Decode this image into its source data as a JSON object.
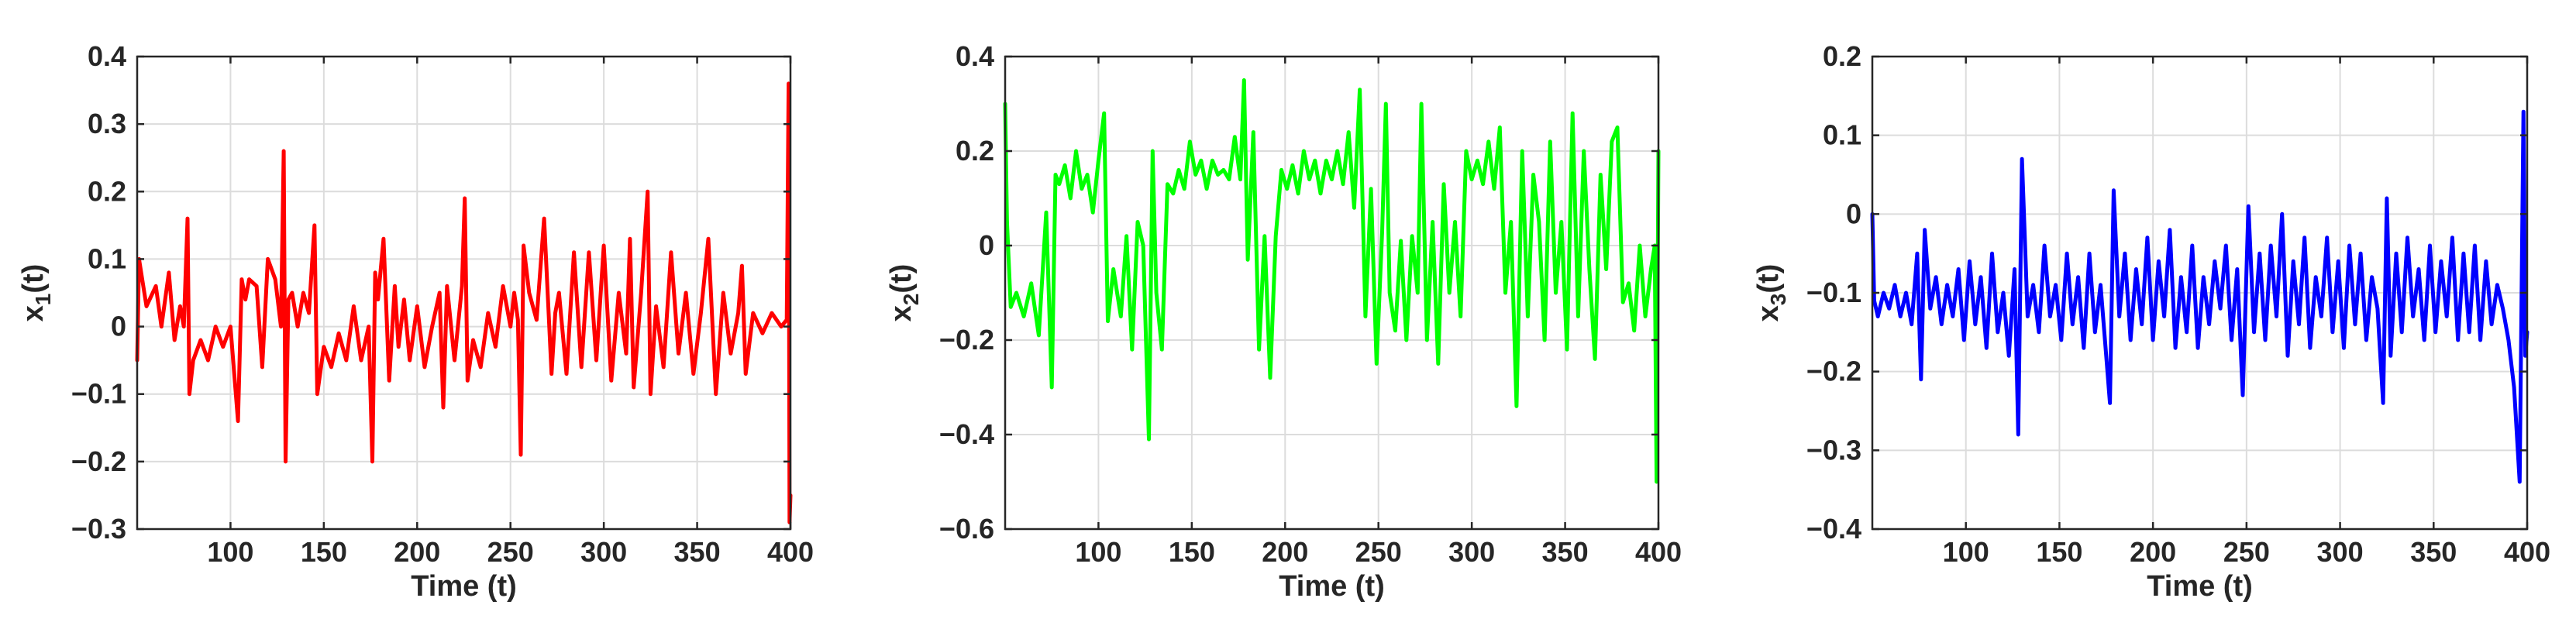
{
  "chart_data": [
    {
      "type": "line",
      "xlabel": "Time (t)",
      "ylabel": "x",
      "ylabel_sub": "1",
      "ylabel_suffix": "(t)",
      "xlim": [
        50,
        400
      ],
      "ylim": [
        -0.3,
        0.4
      ],
      "xticks": [
        100,
        150,
        200,
        250,
        300,
        350,
        400
      ],
      "yticks": [
        -0.3,
        -0.2,
        -0.1,
        0,
        0.1,
        0.2,
        0.3,
        0.4
      ],
      "ytick_labels": [
        "−0.3",
        "−0.2",
        "−0.1",
        "0",
        "0.1",
        "0.2",
        "0.3",
        "0.4"
      ],
      "grid": true,
      "color": "#ff0000",
      "series": [
        {
          "x": [
            50,
            51,
            55,
            60,
            63,
            67,
            70,
            73,
            75,
            77,
            78,
            80,
            84,
            88,
            92,
            96,
            100,
            104,
            106,
            108,
            110,
            114,
            117,
            120,
            124,
            127,
            128.5,
            129.5,
            131,
            133,
            136,
            139,
            142,
            145,
            146.5,
            148,
            150,
            154,
            158,
            162,
            166,
            170,
            174,
            176,
            177.5,
            179,
            182,
            185,
            188,
            190,
            193,
            196,
            200,
            204,
            208,
            212,
            214,
            216,
            220,
            224,
            225.5,
            227,
            230,
            234,
            238,
            242,
            246,
            250,
            252,
            254,
            255.5,
            257,
            260,
            264,
            268,
            272,
            274,
            276,
            280,
            284,
            288,
            292,
            296,
            300,
            304,
            308,
            312,
            314,
            316,
            320,
            323.5,
            325,
            328,
            332,
            336,
            340,
            344,
            348,
            352,
            356,
            360,
            364,
            368,
            372,
            374,
            376,
            380,
            385,
            390,
            395,
            398,
            399,
            399.5,
            400
          ],
          "y": [
            -0.05,
            0.1,
            0.03,
            0.06,
            0.0,
            0.08,
            -0.02,
            0.03,
            0.0,
            0.16,
            -0.1,
            -0.05,
            -0.02,
            -0.05,
            0.0,
            -0.03,
            0.0,
            -0.14,
            0.07,
            0.04,
            0.07,
            0.06,
            -0.06,
            0.1,
            0.07,
            0.0,
            0.26,
            -0.2,
            0.04,
            0.05,
            0.0,
            0.05,
            0.02,
            0.15,
            -0.1,
            -0.07,
            -0.03,
            -0.06,
            -0.01,
            -0.05,
            0.03,
            -0.05,
            0.0,
            -0.2,
            0.08,
            0.04,
            0.13,
            -0.08,
            0.06,
            -0.03,
            0.04,
            -0.05,
            0.03,
            -0.06,
            0.0,
            0.05,
            -0.12,
            0.06,
            -0.05,
            0.06,
            0.19,
            -0.08,
            -0.02,
            -0.06,
            0.02,
            -0.03,
            0.06,
            0.0,
            0.05,
            0.01,
            -0.19,
            0.12,
            0.05,
            0.01,
            0.16,
            -0.07,
            0.02,
            0.05,
            -0.07,
            0.11,
            -0.06,
            0.11,
            -0.05,
            0.12,
            -0.08,
            0.05,
            -0.04,
            0.13,
            -0.09,
            0.05,
            0.2,
            -0.1,
            0.03,
            -0.06,
            0.11,
            -0.04,
            0.05,
            -0.07,
            0.02,
            0.13,
            -0.1,
            0.05,
            -0.04,
            0.02,
            0.09,
            -0.07,
            0.02,
            -0.01,
            0.02,
            0.0,
            0.01,
            0.36,
            -0.29,
            -0.25
          ]
        }
      ]
    },
    {
      "type": "line",
      "xlabel": "Time (t)",
      "ylabel": "x",
      "ylabel_sub": "2",
      "ylabel_suffix": "(t)",
      "xlim": [
        50,
        400
      ],
      "ylim": [
        -0.6,
        0.4
      ],
      "xticks": [
        100,
        150,
        200,
        250,
        300,
        350,
        400
      ],
      "yticks": [
        -0.6,
        -0.4,
        -0.2,
        0,
        0.2,
        0.4
      ],
      "ytick_labels": [
        "−0.6",
        "−0.4",
        "−0.2",
        "0",
        "0.2",
        "0.4"
      ],
      "grid": true,
      "color": "#00ff00",
      "series": [
        {
          "x": [
            50,
            51,
            53,
            56,
            60,
            64,
            68,
            72,
            75,
            77,
            79,
            82,
            85,
            88,
            91,
            94,
            97,
            100,
            103,
            105,
            108,
            112,
            115,
            118,
            121,
            124,
            127,
            129,
            131,
            134,
            137,
            140,
            143,
            146,
            149,
            152,
            155,
            158,
            161,
            164,
            167,
            170,
            173,
            176,
            178,
            180,
            183,
            186,
            189,
            192,
            195,
            198,
            201,
            204,
            207,
            210,
            213,
            216,
            219,
            222,
            225,
            228,
            231,
            234,
            237,
            240,
            243,
            246,
            249,
            252,
            254,
            256,
            259,
            262,
            265,
            268,
            271,
            273,
            276,
            279,
            282,
            285,
            288,
            291,
            294,
            297,
            300,
            303,
            306,
            309,
            312,
            315,
            318,
            321,
            324,
            327,
            330,
            333,
            336,
            339,
            342,
            345,
            348,
            351,
            354,
            357,
            360,
            363,
            366,
            369,
            372,
            375,
            378,
            381,
            384,
            387,
            390,
            393,
            396,
            398,
            399,
            400
          ],
          "y": [
            0.3,
            0.05,
            -0.13,
            -0.1,
            -0.15,
            -0.08,
            -0.19,
            0.07,
            -0.3,
            0.15,
            0.13,
            0.17,
            0.1,
            0.2,
            0.12,
            0.15,
            0.07,
            0.18,
            0.28,
            -0.16,
            -0.05,
            -0.15,
            0.02,
            -0.22,
            0.05,
            0.0,
            -0.41,
            0.2,
            -0.1,
            -0.22,
            0.13,
            0.11,
            0.16,
            0.12,
            0.22,
            0.15,
            0.18,
            0.12,
            0.18,
            0.15,
            0.16,
            0.14,
            0.23,
            0.14,
            0.35,
            -0.03,
            0.24,
            -0.22,
            0.02,
            -0.28,
            0.02,
            0.16,
            0.12,
            0.17,
            0.11,
            0.2,
            0.14,
            0.18,
            0.11,
            0.18,
            0.14,
            0.2,
            0.13,
            0.24,
            0.08,
            0.33,
            -0.15,
            0.12,
            -0.25,
            0.03,
            0.3,
            -0.1,
            -0.18,
            0.01,
            -0.2,
            0.02,
            -0.1,
            0.3,
            -0.2,
            0.05,
            -0.25,
            0.13,
            -0.1,
            0.05,
            -0.15,
            0.2,
            0.14,
            0.18,
            0.13,
            0.22,
            0.12,
            0.25,
            -0.1,
            0.05,
            -0.34,
            0.2,
            -0.15,
            0.15,
            0.05,
            -0.2,
            0.22,
            -0.1,
            0.05,
            -0.22,
            0.28,
            -0.15,
            0.2,
            -0.05,
            -0.24,
            0.15,
            -0.05,
            0.22,
            0.25,
            -0.12,
            -0.08,
            -0.18,
            0.0,
            -0.15,
            -0.05,
            0.0,
            -0.5,
            0.2
          ]
        }
      ]
    },
    {
      "type": "line",
      "xlabel": "Time (t)",
      "ylabel": "x",
      "ylabel_sub": "3",
      "ylabel_suffix": "(t)",
      "xlim": [
        50,
        400
      ],
      "ylim": [
        -0.4,
        0.2
      ],
      "xticks": [
        100,
        150,
        200,
        250,
        300,
        350,
        400
      ],
      "yticks": [
        -0.4,
        -0.3,
        -0.2,
        -0.1,
        0,
        0.1,
        0.2
      ],
      "ytick_labels": [
        "−0.4",
        "−0.3",
        "−0.2",
        "−0.1",
        "0",
        "0.1",
        "0.2"
      ],
      "grid": true,
      "color": "#0000ff",
      "series": [
        {
          "x": [
            50,
            51,
            53,
            56,
            59,
            62,
            65,
            68,
            71,
            74,
            76,
            78,
            81,
            84,
            87,
            90,
            93,
            96,
            99,
            102,
            105,
            108,
            111,
            114,
            117,
            120,
            123,
            126,
            128,
            130,
            133,
            136,
            139,
            142,
            145,
            148,
            151,
            154,
            157,
            160,
            163,
            166,
            169,
            172,
            175,
            177,
            179,
            182,
            185,
            188,
            191,
            194,
            197,
            200,
            203,
            206,
            209,
            212,
            215,
            218,
            221,
            224,
            227,
            230,
            233,
            236,
            239,
            242,
            245,
            248,
            251,
            254,
            257,
            260,
            263,
            266,
            269,
            272,
            275,
            278,
            281,
            284,
            287,
            290,
            293,
            296,
            299,
            302,
            305,
            308,
            311,
            314,
            317,
            320,
            323,
            325,
            327,
            330,
            333,
            336,
            339,
            342,
            345,
            348,
            351,
            354,
            357,
            360,
            363,
            366,
            369,
            372,
            375,
            378,
            381,
            384,
            387,
            390,
            393,
            396,
            398,
            399,
            400
          ],
          "y": [
            0.0,
            -0.11,
            -0.13,
            -0.1,
            -0.12,
            -0.09,
            -0.13,
            -0.1,
            -0.14,
            -0.05,
            -0.21,
            -0.02,
            -0.12,
            -0.08,
            -0.14,
            -0.09,
            -0.13,
            -0.07,
            -0.16,
            -0.06,
            -0.14,
            -0.08,
            -0.17,
            -0.05,
            -0.15,
            -0.1,
            -0.18,
            -0.07,
            -0.28,
            0.07,
            -0.13,
            -0.09,
            -0.15,
            -0.04,
            -0.13,
            -0.09,
            -0.16,
            -0.05,
            -0.14,
            -0.08,
            -0.17,
            -0.05,
            -0.15,
            -0.09,
            -0.18,
            -0.24,
            0.03,
            -0.13,
            -0.05,
            -0.16,
            -0.07,
            -0.14,
            -0.03,
            -0.16,
            -0.06,
            -0.13,
            -0.02,
            -0.17,
            -0.08,
            -0.15,
            -0.04,
            -0.17,
            -0.08,
            -0.14,
            -0.06,
            -0.12,
            -0.04,
            -0.16,
            -0.07,
            -0.23,
            0.01,
            -0.15,
            -0.05,
            -0.16,
            -0.04,
            -0.13,
            0.0,
            -0.18,
            -0.06,
            -0.14,
            -0.03,
            -0.17,
            -0.08,
            -0.13,
            -0.03,
            -0.15,
            -0.06,
            -0.17,
            -0.04,
            -0.14,
            -0.05,
            -0.16,
            -0.08,
            -0.12,
            -0.24,
            0.02,
            -0.18,
            -0.05,
            -0.15,
            -0.03,
            -0.13,
            -0.07,
            -0.16,
            -0.04,
            -0.15,
            -0.06,
            -0.13,
            -0.03,
            -0.16,
            -0.05,
            -0.15,
            -0.04,
            -0.16,
            -0.06,
            -0.14,
            -0.09,
            -0.12,
            -0.16,
            -0.22,
            -0.34,
            0.13,
            -0.18,
            -0.15
          ]
        }
      ]
    }
  ]
}
